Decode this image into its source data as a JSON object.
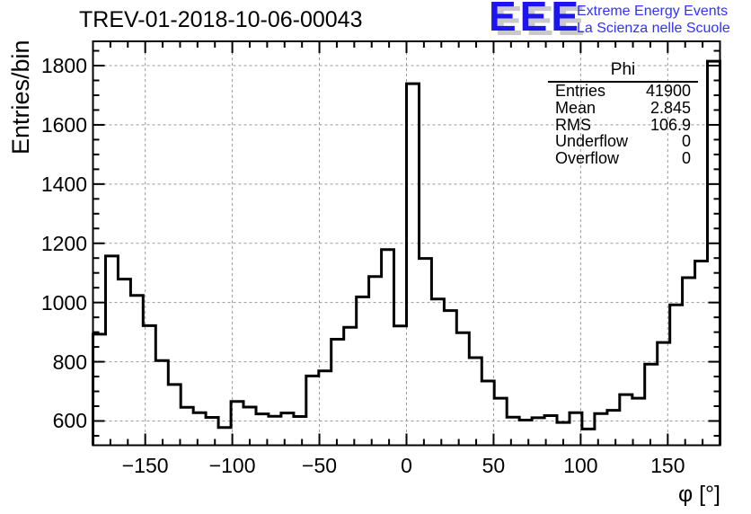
{
  "title": "TREV-01-2018-10-06-00043",
  "logo": {
    "acronym": "EEE",
    "line1": "Extreme Energy Events",
    "line2": "La Scienza nelle Scuole",
    "blue": "#1d14f0",
    "text_blue": "#3232ff",
    "shadow_gray": "#c9c9c9"
  },
  "stats": {
    "header": "Phi",
    "rows": [
      {
        "label": "Entries",
        "value": "41900"
      },
      {
        "label": "Mean",
        "value": "2.845"
      },
      {
        "label": "RMS",
        "value": "106.9"
      },
      {
        "label": "Underflow",
        "value": "0"
      },
      {
        "label": "Overflow",
        "value": "0"
      }
    ]
  },
  "chart_data": {
    "type": "bar",
    "histogram_style": "step-outline",
    "title": "TREV-01-2018-10-06-00043",
    "xlabel": "φ [°]",
    "ylabel": "Entries/bin",
    "bin_start": -180,
    "bin_width": 7.2,
    "values": [
      893,
      1157,
      1079,
      1024,
      922,
      804,
      723,
      646,
      628,
      612,
      578,
      666,
      647,
      624,
      616,
      627,
      615,
      752,
      769,
      876,
      916,
      1019,
      1088,
      1179,
      921,
      1739,
      1149,
      1012,
      973,
      898,
      814,
      735,
      677,
      613,
      603,
      611,
      618,
      595,
      628,
      573,
      625,
      636,
      689,
      677,
      792,
      865,
      992,
      1084,
      1140,
      1815
    ],
    "xlim": [
      -180,
      180
    ],
    "ylim": [
      518,
      1882
    ],
    "xticks": [
      -150,
      -100,
      -50,
      0,
      50,
      100,
      150
    ],
    "yticks": [
      600,
      800,
      1000,
      1200,
      1400,
      1600,
      1800
    ],
    "x_minor_step": 10,
    "y_minor_step": 50,
    "grid": true,
    "grid_style": "dashed",
    "grid_color": "#999999",
    "line_color": "#000000",
    "legend": "none"
  }
}
